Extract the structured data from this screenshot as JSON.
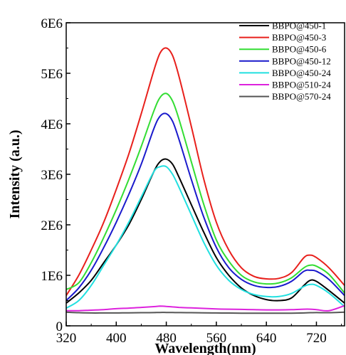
{
  "chart_data": {
    "type": "line",
    "xlabel": "Wavelength(nm)",
    "ylabel": "Intensity (a.u.)",
    "xlim": [
      320,
      765
    ],
    "ylim": [
      0,
      6000000
    ],
    "x_ticks": [
      320,
      400,
      480,
      560,
      640,
      720
    ],
    "x_tick_labels": [
      "320",
      "400",
      "480",
      "560",
      "640",
      "720"
    ],
    "y_ticks": [
      0,
      1000000,
      2000000,
      3000000,
      4000000,
      5000000,
      6000000
    ],
    "y_tick_labels": [
      "0",
      "1E6",
      "2E6",
      "3E6",
      "4E6",
      "5E6",
      "6E6"
    ],
    "grid": false,
    "legend_position": "top-right",
    "x": [
      320,
      340,
      360,
      380,
      400,
      420,
      440,
      460,
      470,
      480,
      490,
      500,
      520,
      540,
      560,
      580,
      600,
      620,
      640,
      660,
      680,
      700,
      710,
      720,
      740,
      765
    ],
    "series": [
      {
        "name": "BBPO@450-1",
        "color": "#000000",
        "values": [
          450000,
          650000,
          900000,
          1250000,
          1600000,
          2000000,
          2500000,
          3050000,
          3250000,
          3300000,
          3200000,
          2950000,
          2400000,
          1850000,
          1350000,
          1000000,
          750000,
          600000,
          520000,
          500000,
          550000,
          800000,
          900000,
          880000,
          700000,
          450000
        ]
      },
      {
        "name": "BBPO@450-3",
        "color": "#e8201c",
        "values": [
          600000,
          1000000,
          1500000,
          2050000,
          2700000,
          3400000,
          4200000,
          5050000,
          5400000,
          5500000,
          5350000,
          4950000,
          3950000,
          2900000,
          2050000,
          1500000,
          1150000,
          980000,
          930000,
          940000,
          1050000,
          1350000,
          1400000,
          1350000,
          1150000,
          800000
        ]
      },
      {
        "name": "BBPO@450-6",
        "color": "#33dd33",
        "values": [
          720000,
          850000,
          1250000,
          1750000,
          2300000,
          2900000,
          3550000,
          4250000,
          4520000,
          4600000,
          4450000,
          4100000,
          3250000,
          2400000,
          1700000,
          1280000,
          1000000,
          870000,
          830000,
          850000,
          950000,
          1150000,
          1200000,
          1180000,
          1020000,
          650000
        ]
      },
      {
        "name": "BBPO@450-12",
        "color": "#1a1acc",
        "values": [
          500000,
          750000,
          1100000,
          1550000,
          2050000,
          2600000,
          3200000,
          3900000,
          4150000,
          4200000,
          4050000,
          3700000,
          2900000,
          2150000,
          1550000,
          1150000,
          920000,
          800000,
          760000,
          780000,
          880000,
          1080000,
          1100000,
          1080000,
          920000,
          600000
        ]
      },
      {
        "name": "BBPO@450-24",
        "color": "#22e0e0",
        "values": [
          350000,
          500000,
          800000,
          1200000,
          1600000,
          2050000,
          2550000,
          3050000,
          3150000,
          3150000,
          3000000,
          2750000,
          2200000,
          1650000,
          1200000,
          900000,
          720000,
          620000,
          580000,
          580000,
          640000,
          780000,
          820000,
          800000,
          650000,
          380000
        ]
      },
      {
        "name": "BBPO@510-24",
        "color": "#dd22dd",
        "values": [
          300000,
          300000,
          310000,
          320000,
          340000,
          350000,
          365000,
          380000,
          390000,
          385000,
          375000,
          365000,
          355000,
          345000,
          335000,
          330000,
          325000,
          320000,
          315000,
          315000,
          320000,
          330000,
          330000,
          320000,
          300000,
          400000
        ]
      },
      {
        "name": "BBPO@570-24",
        "color": "#555555",
        "values": [
          270000,
          260000,
          255000,
          255000,
          255000,
          258000,
          260000,
          262000,
          265000,
          265000,
          263000,
          262000,
          260000,
          258000,
          255000,
          253000,
          250000,
          250000,
          250000,
          250000,
          250000,
          255000,
          260000,
          262000,
          260000,
          270000
        ]
      }
    ]
  }
}
